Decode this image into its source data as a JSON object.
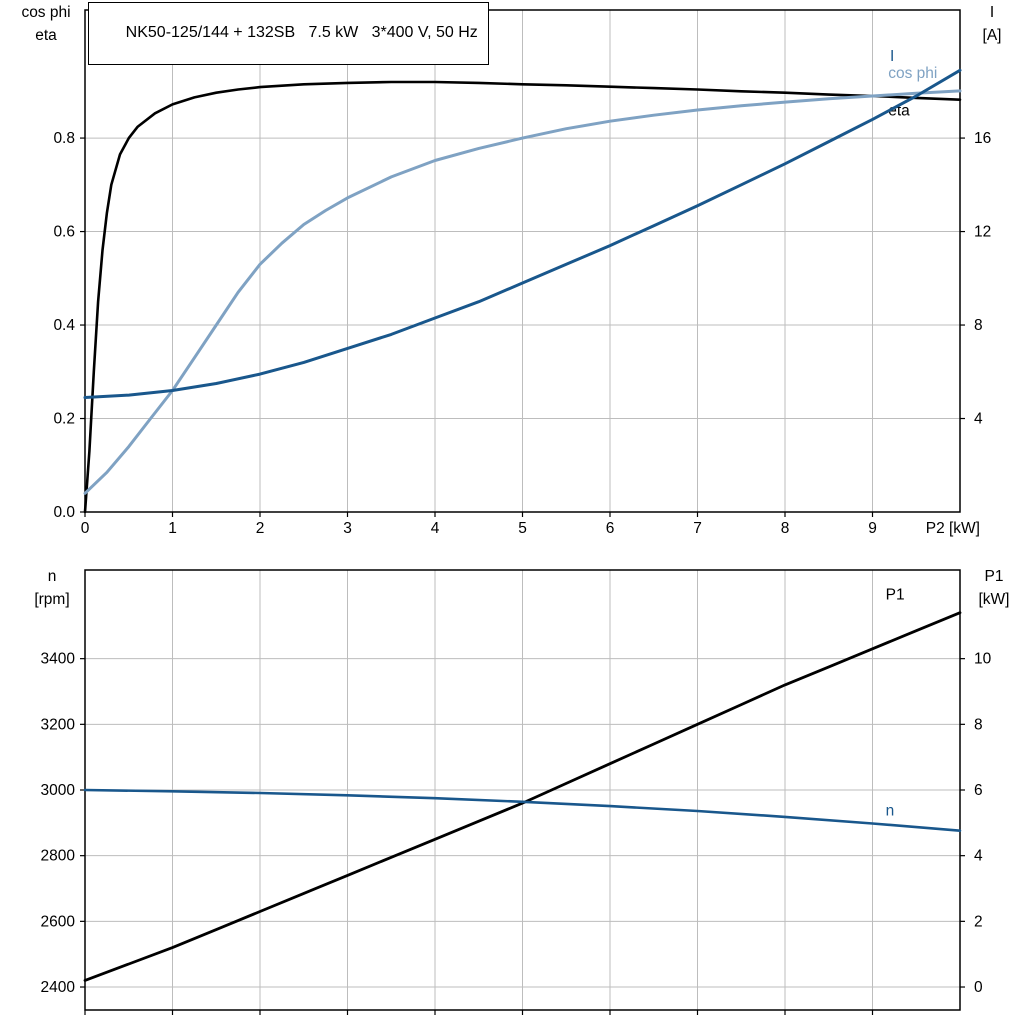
{
  "colors": {
    "grid": "#bdbdbd",
    "frame": "#000000",
    "background": "#ffffff",
    "light_blue": "#7fa2c3",
    "dark_blue": "#19578c"
  },
  "chart_data": [
    {
      "type": "line",
      "title": "NK50-125/144 + 132SB   7.5 kW   3*400 V, 50 Hz",
      "x_axis": {
        "label": "P2 [kW]",
        "min": 0,
        "max": 10,
        "tick_values": [
          0,
          1,
          2,
          3,
          4,
          5,
          6,
          7,
          8,
          9
        ],
        "tick_labels": [
          "0",
          "1",
          "2",
          "3",
          "4",
          "5",
          "6",
          "7",
          "8",
          "9"
        ],
        "grid": true
      },
      "left_axis": {
        "title_lines": [
          "cos phi",
          "eta"
        ],
        "min": 0,
        "max": 1.074,
        "tick_values": [
          0,
          0.2,
          0.4,
          0.6,
          0.8
        ],
        "tick_labels": [
          "0.0",
          "0.2",
          "0.4",
          "0.6",
          "0.8"
        ],
        "grid": true
      },
      "right_axis": {
        "title_lines": [
          "I",
          "[A]"
        ],
        "min": 0,
        "max": 21.48,
        "tick_values": [
          4,
          8,
          12,
          16
        ],
        "tick_labels": [
          "4",
          "8",
          "12",
          "16"
        ]
      },
      "series": [
        {
          "name": "eta",
          "axis": "left",
          "color": "#000000",
          "width": 2.6,
          "label": "eta",
          "label_pos": {
            "x": 9.18,
            "y": 0.848
          },
          "points": [
            [
              0,
              0
            ],
            [
              0.05,
              0.13
            ],
            [
              0.1,
              0.3
            ],
            [
              0.15,
              0.45
            ],
            [
              0.2,
              0.56
            ],
            [
              0.25,
              0.64
            ],
            [
              0.3,
              0.7
            ],
            [
              0.4,
              0.765
            ],
            [
              0.5,
              0.8
            ],
            [
              0.6,
              0.824
            ],
            [
              0.8,
              0.853
            ],
            [
              1,
              0.872
            ],
            [
              1.25,
              0.887
            ],
            [
              1.5,
              0.897
            ],
            [
              1.75,
              0.904
            ],
            [
              2,
              0.909
            ],
            [
              2.5,
              0.915
            ],
            [
              3,
              0.918
            ],
            [
              3.5,
              0.92
            ],
            [
              4,
              0.92
            ],
            [
              4.5,
              0.918
            ],
            [
              5,
              0.915
            ],
            [
              5.5,
              0.913
            ],
            [
              6,
              0.91
            ],
            [
              6.5,
              0.907
            ],
            [
              7,
              0.904
            ],
            [
              7.5,
              0.9
            ],
            [
              8,
              0.897
            ],
            [
              8.5,
              0.893
            ],
            [
              9,
              0.89
            ],
            [
              9.5,
              0.886
            ],
            [
              10,
              0.882
            ]
          ]
        },
        {
          "name": "cos phi",
          "axis": "left",
          "color": "#7fa2c3",
          "width": 3,
          "label": "cos phi",
          "label_pos": {
            "x": 9.18,
            "y": 0.928
          },
          "points": [
            [
              0,
              0.04
            ],
            [
              0.25,
              0.085
            ],
            [
              0.5,
              0.14
            ],
            [
              0.75,
              0.2
            ],
            [
              1,
              0.26
            ],
            [
              1.25,
              0.33
            ],
            [
              1.5,
              0.4
            ],
            [
              1.75,
              0.47
            ],
            [
              2,
              0.53
            ],
            [
              2.25,
              0.575
            ],
            [
              2.5,
              0.615
            ],
            [
              2.75,
              0.645
            ],
            [
              3,
              0.672
            ],
            [
              3.5,
              0.717
            ],
            [
              4,
              0.752
            ],
            [
              4.5,
              0.778
            ],
            [
              5,
              0.8
            ],
            [
              5.5,
              0.82
            ],
            [
              6,
              0.836
            ],
            [
              6.5,
              0.849
            ],
            [
              7,
              0.86
            ],
            [
              7.5,
              0.869
            ],
            [
              8,
              0.877
            ],
            [
              8.5,
              0.884
            ],
            [
              9,
              0.89
            ],
            [
              9.5,
              0.896
            ],
            [
              10,
              0.901
            ]
          ]
        },
        {
          "name": "I",
          "axis": "right",
          "color": "#19578c",
          "width": 3,
          "label": "I",
          "label_pos": {
            "x": 9.2,
            "y": 19.3
          },
          "points": [
            [
              0,
              4.9
            ],
            [
              0.5,
              5.0
            ],
            [
              1,
              5.2
            ],
            [
              1.5,
              5.5
            ],
            [
              2,
              5.9
            ],
            [
              2.5,
              6.4
            ],
            [
              3,
              7.0
            ],
            [
              3.5,
              7.6
            ],
            [
              4,
              8.3
            ],
            [
              4.5,
              9.0
            ],
            [
              5,
              9.8
            ],
            [
              5.5,
              10.6
            ],
            [
              6,
              11.4
            ],
            [
              6.5,
              12.25
            ],
            [
              7,
              13.1
            ],
            [
              7.5,
              14.0
            ],
            [
              8,
              14.9
            ],
            [
              8.5,
              15.85
            ],
            [
              9,
              16.8
            ],
            [
              9.5,
              17.8
            ],
            [
              10,
              18.9
            ]
          ]
        }
      ]
    },
    {
      "type": "line",
      "title": "",
      "x_axis": {
        "label": "",
        "min": 0,
        "max": 10,
        "tick_values": [
          0,
          1,
          2,
          3,
          4,
          5,
          6,
          7,
          8,
          9
        ],
        "tick_labels": [
          "",
          "",
          "",
          "",
          "",
          "",
          "",
          "",
          "",
          ""
        ],
        "grid": true
      },
      "left_axis": {
        "title_lines": [
          "n",
          "[rpm]"
        ],
        "min": 2330,
        "max": 3670,
        "tick_values": [
          2400,
          2600,
          2800,
          3000,
          3200,
          3400
        ],
        "tick_labels": [
          "2400",
          "2600",
          "2800",
          "3000",
          "3200",
          "3400"
        ],
        "grid": true
      },
      "right_axis": {
        "title_lines": [
          "P1",
          "[kW]"
        ],
        "min": -0.7,
        "max": 12.7,
        "tick_values": [
          0,
          2,
          4,
          6,
          8,
          10
        ],
        "tick_labels": [
          "0",
          "2",
          "4",
          "6",
          "8",
          "10"
        ]
      },
      "series": [
        {
          "name": "P1",
          "axis": "right",
          "color": "#000000",
          "width": 2.8,
          "label": "P1",
          "label_pos": {
            "x": 9.15,
            "y": 11.8
          },
          "points": [
            [
              0,
              0.2
            ],
            [
              0.5,
              0.7
            ],
            [
              1,
              1.2
            ],
            [
              1.5,
              1.75
            ],
            [
              2,
              2.3
            ],
            [
              2.5,
              2.85
            ],
            [
              3,
              3.4
            ],
            [
              3.5,
              3.95
            ],
            [
              4,
              4.5
            ],
            [
              4.5,
              5.05
            ],
            [
              5,
              5.6
            ],
            [
              5.5,
              6.2
            ],
            [
              6,
              6.8
            ],
            [
              6.5,
              7.4
            ],
            [
              7,
              8.0
            ],
            [
              7.5,
              8.6
            ],
            [
              8,
              9.2
            ],
            [
              8.5,
              9.75
            ],
            [
              9,
              10.3
            ],
            [
              9.5,
              10.85
            ],
            [
              10,
              11.4
            ]
          ]
        },
        {
          "name": "n",
          "axis": "left",
          "color": "#19578c",
          "width": 2.6,
          "label": "n",
          "label_pos": {
            "x": 9.15,
            "y": 2922
          },
          "points": [
            [
              0,
              3000
            ],
            [
              1,
              2996
            ],
            [
              2,
              2991
            ],
            [
              3,
              2984
            ],
            [
              4,
              2975
            ],
            [
              5,
              2964
            ],
            [
              6,
              2951
            ],
            [
              7,
              2936
            ],
            [
              8,
              2918
            ],
            [
              9,
              2898
            ],
            [
              10,
              2876
            ]
          ]
        }
      ]
    }
  ]
}
